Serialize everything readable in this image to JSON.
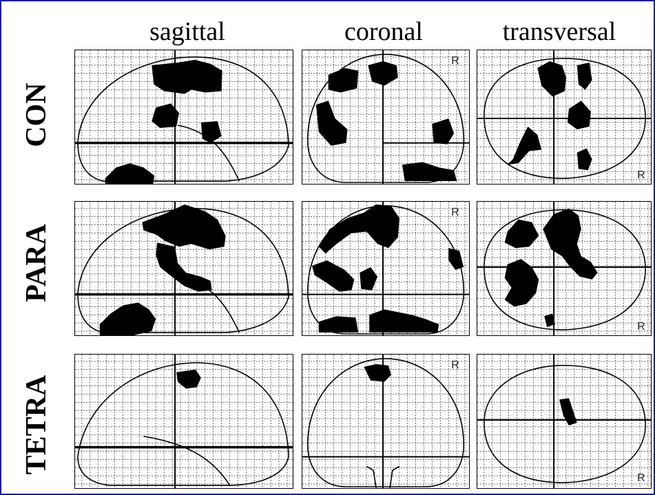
{
  "columns": [
    "sagittal",
    "coronal",
    "transversal"
  ],
  "rows": [
    "CON",
    "PARA",
    "TETRA"
  ],
  "orientation_marker": "R",
  "colors": {
    "frame": "#1d1d9a",
    "activation": "#000000"
  }
}
